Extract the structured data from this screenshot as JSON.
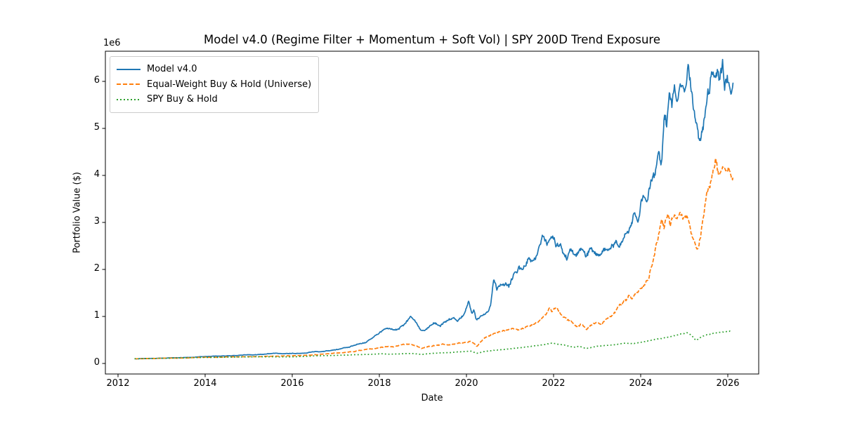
{
  "chart_data": {
    "type": "line",
    "title": "Model v4.0 (Regime Filter + Momentum + Soft Vol) | SPY 200D Trend Exposure",
    "xlabel": "Date",
    "ylabel": "Portfolio Value ($)",
    "y_offset_text": "1e6",
    "units": "values in millions of dollars, x in decimal years",
    "grid": false,
    "legend_position": "upper left",
    "xlim": [
      2011.71,
      2026.72
    ],
    "ylim": [
      -0.22,
      6.64
    ],
    "x_ticks": [
      "2012",
      "2014",
      "2016",
      "2018",
      "2020",
      "2022",
      "2024",
      "2026"
    ],
    "x_tick_values": [
      2012,
      2014,
      2016,
      2018,
      2020,
      2022,
      2024,
      2026
    ],
    "y_ticks": [
      "0",
      "1",
      "2",
      "3",
      "4",
      "5",
      "6"
    ],
    "y_tick_values": [
      0,
      1,
      2,
      3,
      4,
      5,
      6
    ],
    "series": [
      {
        "name": "Model v4.0",
        "color": "#1f77b4",
        "line_style": "solid",
        "points": [
          [
            2012.38,
            0.1
          ],
          [
            2012.6,
            0.103
          ],
          [
            2012.9,
            0.109
          ],
          [
            2013.2,
            0.118
          ],
          [
            2013.5,
            0.127
          ],
          [
            2013.8,
            0.138
          ],
          [
            2014.1,
            0.149
          ],
          [
            2014.4,
            0.158
          ],
          [
            2014.7,
            0.168
          ],
          [
            2015.0,
            0.184
          ],
          [
            2015.3,
            0.196
          ],
          [
            2015.6,
            0.207
          ],
          [
            2015.9,
            0.218
          ],
          [
            2016.1,
            0.222
          ],
          [
            2016.25,
            0.23
          ],
          [
            2016.5,
            0.252
          ],
          [
            2016.75,
            0.272
          ],
          [
            2017.0,
            0.302
          ],
          [
            2017.25,
            0.345
          ],
          [
            2017.5,
            0.395
          ],
          [
            2017.7,
            0.455
          ],
          [
            2017.9,
            0.56
          ],
          [
            2018.05,
            0.66
          ],
          [
            2018.15,
            0.75
          ],
          [
            2018.3,
            0.69
          ],
          [
            2018.45,
            0.76
          ],
          [
            2018.6,
            0.86
          ],
          [
            2018.72,
            0.98
          ],
          [
            2018.8,
            0.93
          ],
          [
            2018.88,
            0.84
          ],
          [
            2018.97,
            0.74
          ],
          [
            2019.1,
            0.8
          ],
          [
            2019.25,
            0.85
          ],
          [
            2019.4,
            0.82
          ],
          [
            2019.55,
            0.89
          ],
          [
            2019.7,
            0.93
          ],
          [
            2019.8,
            0.9
          ],
          [
            2019.95,
            1.02
          ],
          [
            2020.05,
            1.24
          ],
          [
            2020.12,
            0.98
          ],
          [
            2020.17,
            1.06
          ],
          [
            2020.23,
            0.88
          ],
          [
            2020.33,
            0.99
          ],
          [
            2020.45,
            1.06
          ],
          [
            2020.55,
            1.25
          ],
          [
            2020.63,
            1.82
          ],
          [
            2020.7,
            1.56
          ],
          [
            2020.8,
            1.65
          ],
          [
            2020.9,
            1.78
          ],
          [
            2021.0,
            1.72
          ],
          [
            2021.1,
            1.95
          ],
          [
            2021.2,
            2.1
          ],
          [
            2021.3,
            2.02
          ],
          [
            2021.42,
            2.25
          ],
          [
            2021.52,
            2.17
          ],
          [
            2021.65,
            2.4
          ],
          [
            2021.75,
            2.62
          ],
          [
            2021.85,
            2.54
          ],
          [
            2021.95,
            2.7
          ],
          [
            2022.05,
            2.48
          ],
          [
            2022.15,
            2.58
          ],
          [
            2022.3,
            2.28
          ],
          [
            2022.42,
            2.42
          ],
          [
            2022.52,
            2.25
          ],
          [
            2022.62,
            2.38
          ],
          [
            2022.75,
            2.23
          ],
          [
            2022.87,
            2.44
          ],
          [
            2023.0,
            2.32
          ],
          [
            2023.15,
            2.39
          ],
          [
            2023.3,
            2.46
          ],
          [
            2023.42,
            2.52
          ],
          [
            2023.5,
            2.36
          ],
          [
            2023.62,
            2.6
          ],
          [
            2023.75,
            2.9
          ],
          [
            2023.85,
            3.28
          ],
          [
            2023.95,
            3.18
          ],
          [
            2024.05,
            3.62
          ],
          [
            2024.15,
            3.48
          ],
          [
            2024.25,
            4.1
          ],
          [
            2024.33,
            4.0
          ],
          [
            2024.42,
            4.48
          ],
          [
            2024.48,
            4.3
          ],
          [
            2024.54,
            5.25
          ],
          [
            2024.6,
            4.95
          ],
          [
            2024.66,
            5.55
          ],
          [
            2024.72,
            5.35
          ],
          [
            2024.78,
            5.8
          ],
          [
            2024.84,
            5.55
          ],
          [
            2024.9,
            5.9
          ],
          [
            2024.97,
            6.05
          ],
          [
            2025.03,
            5.8
          ],
          [
            2025.09,
            6.25
          ],
          [
            2025.14,
            5.8
          ],
          [
            2025.2,
            5.35
          ],
          [
            2025.28,
            5.0
          ],
          [
            2025.36,
            4.72
          ],
          [
            2025.44,
            5.2
          ],
          [
            2025.52,
            5.48
          ],
          [
            2025.6,
            5.8
          ],
          [
            2025.68,
            6.05
          ],
          [
            2025.76,
            6.28
          ],
          [
            2025.82,
            5.95
          ],
          [
            2025.88,
            6.15
          ],
          [
            2025.93,
            5.78
          ],
          [
            2026.0,
            6.05
          ],
          [
            2026.06,
            5.92
          ],
          [
            2026.12,
            5.95
          ]
        ]
      },
      {
        "name": "Equal-Weight Buy & Hold (Universe)",
        "color": "#ff7f0e",
        "line_style": "dashed",
        "points": [
          [
            2012.38,
            0.1
          ],
          [
            2012.7,
            0.105
          ],
          [
            2013.0,
            0.111
          ],
          [
            2013.4,
            0.118
          ],
          [
            2013.8,
            0.126
          ],
          [
            2014.2,
            0.132
          ],
          [
            2014.6,
            0.139
          ],
          [
            2015.0,
            0.147
          ],
          [
            2015.4,
            0.153
          ],
          [
            2015.8,
            0.159
          ],
          [
            2016.1,
            0.166
          ],
          [
            2016.5,
            0.188
          ],
          [
            2016.9,
            0.212
          ],
          [
            2017.2,
            0.24
          ],
          [
            2017.5,
            0.268
          ],
          [
            2017.8,
            0.295
          ],
          [
            2018.0,
            0.32
          ],
          [
            2018.15,
            0.345
          ],
          [
            2018.35,
            0.36
          ],
          [
            2018.55,
            0.385
          ],
          [
            2018.72,
            0.405
          ],
          [
            2018.85,
            0.375
          ],
          [
            2018.97,
            0.33
          ],
          [
            2019.1,
            0.37
          ],
          [
            2019.3,
            0.4
          ],
          [
            2019.5,
            0.42
          ],
          [
            2019.65,
            0.41
          ],
          [
            2019.8,
            0.435
          ],
          [
            2019.95,
            0.46
          ],
          [
            2020.08,
            0.48
          ],
          [
            2020.16,
            0.43
          ],
          [
            2020.24,
            0.355
          ],
          [
            2020.33,
            0.47
          ],
          [
            2020.42,
            0.545
          ],
          [
            2020.55,
            0.6
          ],
          [
            2020.68,
            0.64
          ],
          [
            2020.8,
            0.67
          ],
          [
            2020.9,
            0.695
          ],
          [
            2021.0,
            0.725
          ],
          [
            2021.1,
            0.755
          ],
          [
            2021.22,
            0.735
          ],
          [
            2021.35,
            0.775
          ],
          [
            2021.5,
            0.815
          ],
          [
            2021.62,
            0.865
          ],
          [
            2021.72,
            0.94
          ],
          [
            2021.82,
            1.05
          ],
          [
            2021.9,
            1.175
          ],
          [
            2021.97,
            1.1
          ],
          [
            2022.05,
            1.145
          ],
          [
            2022.15,
            1.06
          ],
          [
            2022.25,
            0.99
          ],
          [
            2022.35,
            0.935
          ],
          [
            2022.45,
            0.865
          ],
          [
            2022.55,
            0.78
          ],
          [
            2022.63,
            0.845
          ],
          [
            2022.75,
            0.715
          ],
          [
            2022.87,
            0.815
          ],
          [
            2023.0,
            0.875
          ],
          [
            2023.1,
            0.845
          ],
          [
            2023.25,
            0.945
          ],
          [
            2023.4,
            1.05
          ],
          [
            2023.52,
            1.22
          ],
          [
            2023.62,
            1.3
          ],
          [
            2023.72,
            1.42
          ],
          [
            2023.8,
            1.37
          ],
          [
            2023.9,
            1.47
          ],
          [
            2024.0,
            1.54
          ],
          [
            2024.1,
            1.62
          ],
          [
            2024.2,
            1.88
          ],
          [
            2024.3,
            2.25
          ],
          [
            2024.4,
            2.65
          ],
          [
            2024.48,
            3.05
          ],
          [
            2024.54,
            2.88
          ],
          [
            2024.62,
            3.22
          ],
          [
            2024.68,
            3.0
          ],
          [
            2024.76,
            3.25
          ],
          [
            2024.84,
            3.12
          ],
          [
            2024.9,
            3.28
          ],
          [
            2024.97,
            3.12
          ],
          [
            2025.05,
            3.22
          ],
          [
            2025.12,
            3.05
          ],
          [
            2025.2,
            2.75
          ],
          [
            2025.3,
            2.43
          ],
          [
            2025.38,
            2.68
          ],
          [
            2025.44,
            3.1
          ],
          [
            2025.5,
            3.55
          ],
          [
            2025.58,
            3.85
          ],
          [
            2025.66,
            4.15
          ],
          [
            2025.72,
            4.4
          ],
          [
            2025.78,
            4.15
          ],
          [
            2025.84,
            4.05
          ],
          [
            2025.9,
            4.12
          ],
          [
            2025.97,
            4.02
          ],
          [
            2026.05,
            4.05
          ],
          [
            2026.12,
            3.95
          ]
        ]
      },
      {
        "name": "SPY Buy & Hold",
        "color": "#2ca02c",
        "line_style": "dotted",
        "points": [
          [
            2012.38,
            0.1
          ],
          [
            2012.8,
            0.106
          ],
          [
            2013.2,
            0.113
          ],
          [
            2013.6,
            0.12
          ],
          [
            2014.0,
            0.126
          ],
          [
            2014.4,
            0.132
          ],
          [
            2014.8,
            0.138
          ],
          [
            2015.2,
            0.141
          ],
          [
            2015.6,
            0.142
          ],
          [
            2015.9,
            0.14
          ],
          [
            2016.2,
            0.148
          ],
          [
            2016.6,
            0.162
          ],
          [
            2017.0,
            0.173
          ],
          [
            2017.4,
            0.182
          ],
          [
            2017.8,
            0.193
          ],
          [
            2018.05,
            0.205
          ],
          [
            2018.25,
            0.197
          ],
          [
            2018.5,
            0.205
          ],
          [
            2018.75,
            0.212
          ],
          [
            2018.97,
            0.19
          ],
          [
            2019.2,
            0.215
          ],
          [
            2019.45,
            0.228
          ],
          [
            2019.7,
            0.237
          ],
          [
            2019.95,
            0.252
          ],
          [
            2020.1,
            0.262
          ],
          [
            2020.24,
            0.213
          ],
          [
            2020.4,
            0.252
          ],
          [
            2020.6,
            0.278
          ],
          [
            2020.8,
            0.295
          ],
          [
            2021.0,
            0.312
          ],
          [
            2021.2,
            0.332
          ],
          [
            2021.4,
            0.352
          ],
          [
            2021.6,
            0.372
          ],
          [
            2021.8,
            0.402
          ],
          [
            2021.97,
            0.442
          ],
          [
            2022.1,
            0.42
          ],
          [
            2022.25,
            0.395
          ],
          [
            2022.45,
            0.348
          ],
          [
            2022.58,
            0.372
          ],
          [
            2022.75,
            0.322
          ],
          [
            2022.9,
            0.356
          ],
          [
            2023.05,
            0.372
          ],
          [
            2023.25,
            0.388
          ],
          [
            2023.45,
            0.405
          ],
          [
            2023.65,
            0.432
          ],
          [
            2023.8,
            0.425
          ],
          [
            2023.95,
            0.442
          ],
          [
            2024.1,
            0.465
          ],
          [
            2024.25,
            0.49
          ],
          [
            2024.4,
            0.512
          ],
          [
            2024.55,
            0.54
          ],
          [
            2024.7,
            0.575
          ],
          [
            2024.85,
            0.615
          ],
          [
            2024.97,
            0.63
          ],
          [
            2025.07,
            0.645
          ],
          [
            2025.17,
            0.595
          ],
          [
            2025.27,
            0.49
          ],
          [
            2025.38,
            0.56
          ],
          [
            2025.5,
            0.6
          ],
          [
            2025.65,
            0.635
          ],
          [
            2025.8,
            0.665
          ],
          [
            2025.95,
            0.685
          ],
          [
            2026.08,
            0.69
          ]
        ]
      }
    ]
  }
}
